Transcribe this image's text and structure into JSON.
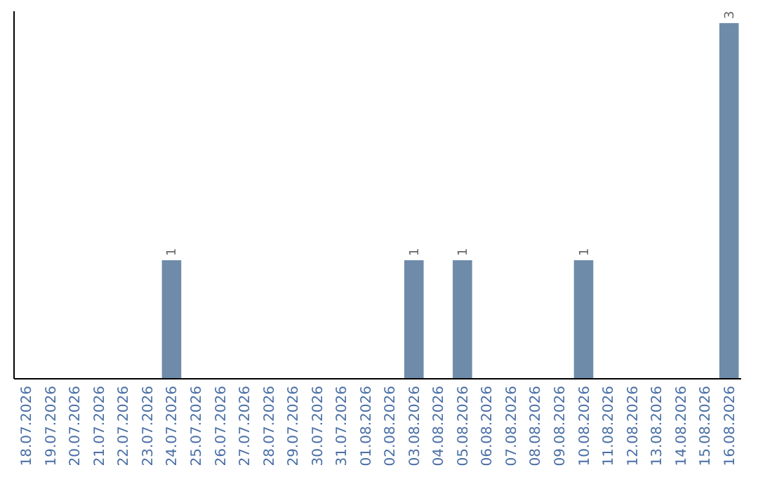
{
  "chart_data": {
    "type": "bar",
    "categories": [
      "18.07.2026",
      "19.07.2026",
      "20.07.2026",
      "21.07.2026",
      "22.07.2026",
      "23.07.2026",
      "24.07.2026",
      "25.07.2026",
      "26.07.2026",
      "27.07.2026",
      "28.07.2026",
      "29.07.2026",
      "30.07.2026",
      "31.07.2026",
      "01.08.2026",
      "02.08.2026",
      "03.08.2026",
      "04.08.2026",
      "05.08.2026",
      "06.08.2026",
      "07.08.2026",
      "08.08.2026",
      "09.08.2026",
      "10.08.2026",
      "11.08.2026",
      "12.08.2026",
      "13.08.2026",
      "14.08.2026",
      "15.08.2026",
      "16.08.2026"
    ],
    "values": [
      0,
      0,
      0,
      0,
      0,
      0,
      1,
      0,
      0,
      0,
      0,
      0,
      0,
      0,
      0,
      0,
      1,
      0,
      1,
      0,
      0,
      0,
      0,
      1,
      0,
      0,
      0,
      0,
      0,
      3
    ],
    "value_labels": [
      null,
      null,
      null,
      null,
      null,
      null,
      "1",
      null,
      null,
      null,
      null,
      null,
      null,
      null,
      null,
      null,
      "1",
      null,
      "1",
      null,
      null,
      null,
      null,
      "1",
      null,
      null,
      null,
      null,
      null,
      "3"
    ],
    "color": "#6e8caa",
    "ylim": [
      0,
      3.1
    ],
    "tick_labels": "x"
  }
}
